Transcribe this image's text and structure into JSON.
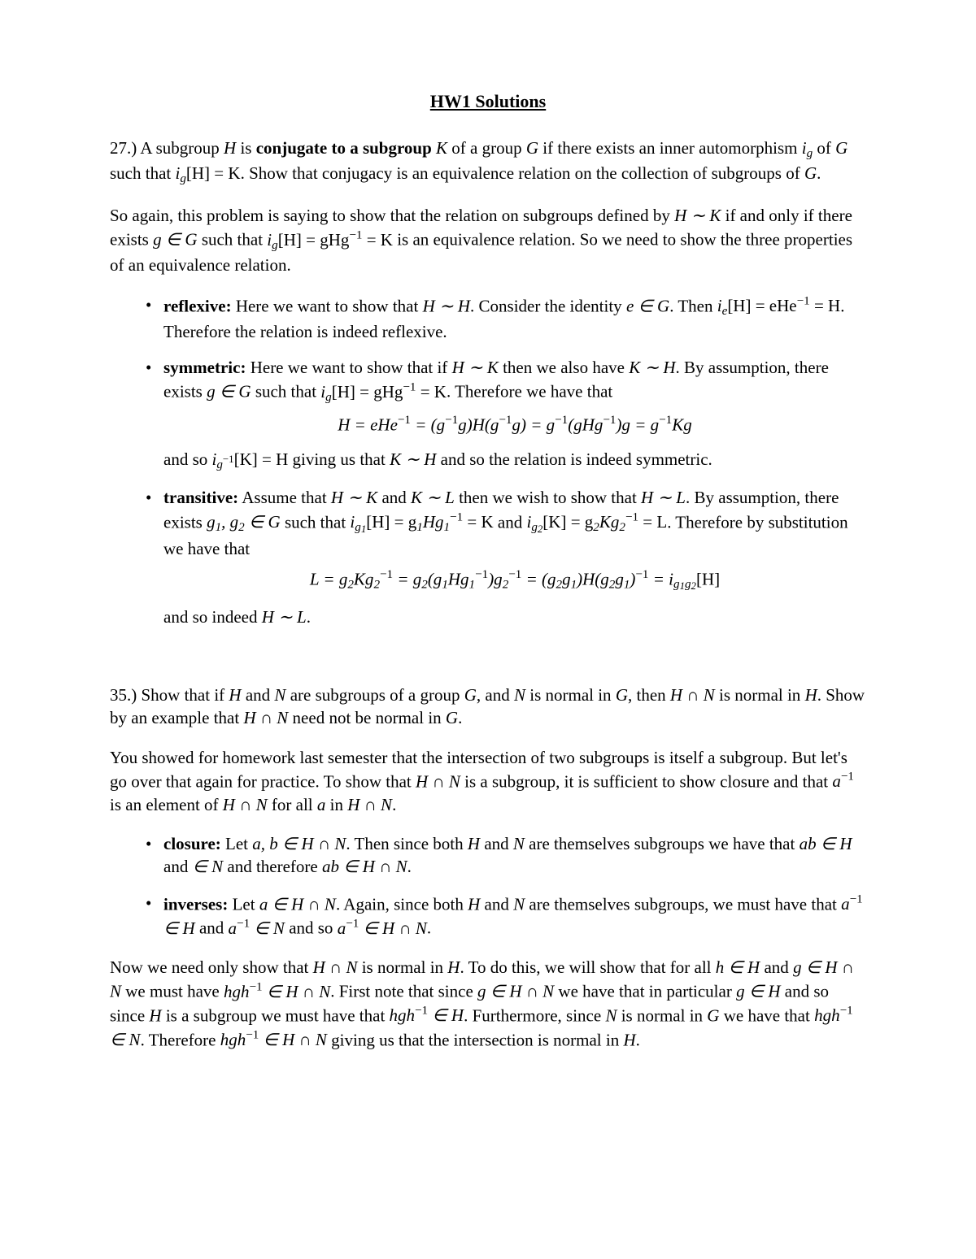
{
  "title": "HW1 Solutions",
  "prob27": {
    "num": "27.)",
    "statement_1": "A subgroup ",
    "H": "H",
    "is_conj": " is ",
    "conj_bold": "conjugate to a subgroup",
    "K": " K",
    "of_group": " of a group ",
    "G": "G",
    "if_exists": " if there exists an inner automorphism ",
    "ig": "i",
    "ig_sub": "g",
    "of_G": " of ",
    "such_that": " such that ",
    "eq1_l": "i",
    "eq1_br": "[H] = K",
    "show_conj": ". Show that conjugacy is an equivalence relation on the collection of subgroups of ",
    "period": ".",
    "so_again": "So again, this problem is saying to show that the relation on subgroups defined by ",
    "HsimK": "H ∼ K",
    "iff": " if and only if there exists ",
    "ginG": "g ∈ G",
    "such_that2": " such that ",
    "eq2": "[H] = gHg",
    "eq2_end": " = K",
    "is_equiv": " is an equivalence relation. So we need to show the three properties of an equivalence relation.",
    "reflexive_label": "reflexive:",
    "reflexive_text1": " Here we want to show that ",
    "HsimH": "H ∼ H",
    "reflexive_text2": ". Consider the identity ",
    "einG": "e ∈ G",
    "reflexive_text3": ". Then ",
    "refl_eq": "[H] = eHe",
    "refl_eq2": " = H",
    "reflexive_text4": ". Therefore the relation is indeed reflexive.",
    "symmetric_label": "symmetric:",
    "sym_text1": " Here we want to show that if ",
    "sym_text2": " then we also have ",
    "KsimH": "K ∼ H",
    "sym_text3": ". By assumption, there exists ",
    "sym_text4": " such that ",
    "sym_eq1": "[H] = gHg",
    "sym_eq1_end": " = K",
    "sym_text5": ". Therefore we have that",
    "sym_display": "H = eHe",
    "sym_display2": " = (g",
    "sym_display3": "g)H(g",
    "sym_display4": "g) = g",
    "sym_display5": "(gHg",
    "sym_display6": ")g = g",
    "sym_display7": "Kg",
    "sym_text6": "and so ",
    "sym_eq2": "[K] = H",
    "sym_text7": " giving us that ",
    "sym_text8": " and so the relation is indeed symmetric.",
    "transitive_label": "transitive:",
    "trans_text1": " Assume that ",
    "trans_text2": " and ",
    "KsimL": "K ∼ L",
    "trans_text3": " then we wish to show that ",
    "HsimL": "H ∼ L",
    "trans_text4": ". By assumption, there exists ",
    "g1g2inG": "g",
    "trans_text4b": ", g",
    "trans_text4c": " ∈ G",
    "trans_text5": " such that ",
    "trans_eq1": "[H] = g",
    "trans_eq1b": "Hg",
    "trans_eq1c": " = K",
    "trans_text6": " and ",
    "trans_eq2": "[K] = g",
    "trans_eq2b": "Kg",
    "trans_eq2c": " = L",
    "trans_text7": ". Therefore by substitution we have that",
    "trans_display1": "L = g",
    "trans_display2": "Kg",
    "trans_display3": " = g",
    "trans_display4": "(g",
    "trans_display5": "Hg",
    "trans_display6": ")g",
    "trans_display7": " = (g",
    "trans_display8": "g",
    "trans_display9": ")H(g",
    "trans_display10": "g",
    "trans_display11": ")",
    "trans_display12": " = i",
    "trans_display13": "[H]",
    "trans_text8": "and so indeed ",
    "g1": "1",
    "g2": "2",
    "m1": "−1",
    "g1g2": "g",
    "sub_e": "e",
    "ginv": "g",
    "ginv_sup": "−1"
  },
  "prob35": {
    "num": "35.)",
    "statement": " Show that if ",
    "H": "H",
    "and": " and ",
    "N": "N",
    "are_sub": " are subgroups of a group ",
    "G": "G",
    "and_N": ", and ",
    "normal_in": " is normal in ",
    "then": ", then ",
    "HcapN": "H ∩ N",
    "show_ex": ". Show by an example that ",
    "neednot": " need not be normal in ",
    "period": ".",
    "you_showed": "You showed for homework last semester that the intersection of two subgroups is itself a subgroup. But let's go over that again for practice. To show that ",
    "is_sub": " is a subgroup, it is sufficient to show closure and that ",
    "ainv": "a",
    "is_elem": " is an element of ",
    "forall": " for all ",
    "a": "a",
    "in": " in ",
    "closure_label": "closure:",
    "closure_text1": " Let ",
    "abinHN": "a, b ∈ H ∩ N",
    "closure_text2": ". Then since both ",
    "closure_text3": " are themselves subgroups we have that ",
    "abinH": "ab ∈ H",
    "closure_text4": " and ",
    "inN_only": "∈ N",
    "closure_text5": " and therefore ",
    "abinHN2": "ab ∈ H ∩ N",
    "inverses_label": "inverses:",
    "inv_text1": " Let ",
    "ainHN": "a ∈ H ∩ N",
    "inv_text2": ". Again, since both ",
    "inv_text3": " are themselves subgroups, we must have that ",
    "ainvinH": " ∈ H",
    "ainvinN": " ∈ N",
    "inv_text4": " and so ",
    "ainvinHN": " ∈ H ∩ N",
    "now_need": "Now we need only show that ",
    "to_do": ". To do this, we will show that for all ",
    "hinH": "h ∈ H",
    "ginHN": "g ∈ H ∩ N",
    "we_must": " we must have ",
    "hgh": "hgh",
    "inHN": " ∈ H ∩ N",
    "first_note": ". First note that since ",
    "in_part": " we have that in particular ",
    "ginH": "g ∈ H",
    "and_since": " and so since ",
    "is_sub2": " is a subgroup we must have that ",
    "inH": " ∈ H",
    "furthermore": ". Furthermore, since ",
    "normal_G": " is normal in ",
    "we_have": " we have that ",
    "inN": " ∈ N",
    "therefore": ". Therefore ",
    "giving": " giving us that the intersection is normal in "
  }
}
